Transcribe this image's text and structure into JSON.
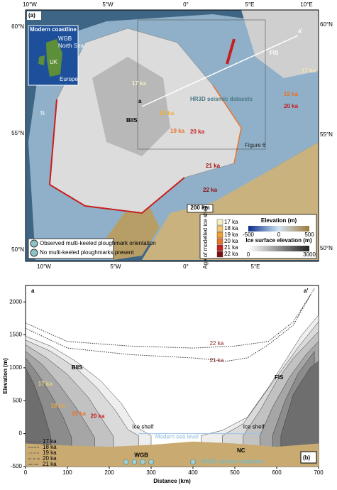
{
  "map": {
    "panel_label": "(a)",
    "lon_top": [
      "10°W",
      "5°W",
      "0°",
      "5°E",
      "10°E"
    ],
    "lon_bottom": [
      "10°W",
      "5°W",
      "0°",
      "5°E"
    ],
    "lat_left": [
      "60°N",
      "55°N",
      "50°N"
    ],
    "lat_right": [
      "60°N",
      "55°N",
      "50°N"
    ],
    "inset": {
      "title": "Modern coastline",
      "labels": [
        "WGB",
        "North Sea",
        "UK",
        "Europe"
      ]
    },
    "ice_sheets": [
      "BIIS",
      "FIS"
    ],
    "transect_ends": [
      "a",
      "a′"
    ],
    "margin_labels": [
      "17 ka",
      "18 ka",
      "19 ka",
      "20 ka",
      "21 ka",
      "22 ka",
      "19 ka",
      "20 ka",
      "17 ka"
    ],
    "seismic_label": "HR3D seismic datasets",
    "box_label": "Figure 6",
    "scale_bar": "200 km",
    "north": "N",
    "symbols": [
      "Observed multi-keeled ploughmark orientation",
      "No multi-keeled ploughmarks present"
    ],
    "legend": {
      "age_title": "Age of modelled ice shelf",
      "ages": [
        "17 ka",
        "18 ka",
        "19 ka",
        "20 ka",
        "21 ka",
        "22 ka"
      ],
      "elevation_title": "Elevation (m)",
      "elevation_ticks": [
        -500,
        0,
        500
      ],
      "ice_title": "Ice surface elevation (m)",
      "ice_ticks": [
        0,
        3000
      ]
    }
  },
  "chart_data": {
    "type": "area",
    "panel_label": "(b)",
    "end_labels": [
      "a",
      "a′"
    ],
    "x_label": "Distance (km)",
    "y_label": "Elevation (m)",
    "xlim": [
      0,
      700
    ],
    "xticks": [
      0,
      100,
      200,
      300,
      400,
      500,
      600,
      700
    ],
    "ylim": [
      -500,
      2250
    ],
    "yticks": [
      -500,
      0,
      500,
      1000,
      1500,
      2000
    ],
    "annotations": [
      "BIIS",
      "FIS",
      "Ice shelf",
      "Ice shelf",
      "Modern sea level",
      "NC",
      "WGB",
      "HR3D seismic datasets"
    ],
    "biis_series": [
      {
        "name": "22 ka",
        "color": "#eeeeee",
        "x": [
          0,
          60,
          120,
          180,
          230,
          265,
          300
        ],
        "values": [
          1480,
          1330,
          1100,
          800,
          450,
          100,
          -30
        ]
      },
      {
        "name": "21 ka",
        "color": "#dadada",
        "x": [
          0,
          60,
          120,
          170,
          215,
          245,
          270
        ],
        "values": [
          1420,
          1250,
          1000,
          700,
          350,
          60,
          -30
        ]
      },
      {
        "name": "20 ka",
        "color": "#c2c2c2",
        "x": [
          0,
          50,
          100,
          150,
          185,
          210
        ],
        "values": [
          1350,
          1150,
          900,
          550,
          200,
          -40
        ]
      },
      {
        "name": "19 ka",
        "color": "#a6a6a6",
        "x": [
          0,
          40,
          80,
          120,
          150,
          165
        ],
        "values": [
          1250,
          1050,
          750,
          400,
          100,
          -60
        ]
      },
      {
        "name": "18 ka",
        "color": "#8c8c8c",
        "x": [
          0,
          30,
          60,
          90,
          110
        ],
        "values": [
          1150,
          900,
          600,
          250,
          -60
        ]
      },
      {
        "name": "17 ka",
        "color": "#6e6e6e",
        "x": [
          0,
          20,
          40,
          60
        ],
        "values": [
          1000,
          750,
          400,
          -40
        ]
      }
    ],
    "fis_series": [
      {
        "name": "22 ka",
        "color": "#eeeeee",
        "x": [
          420,
          470,
          530,
          580,
          620,
          660,
          700
        ],
        "values": [
          -30,
          50,
          250,
          700,
          1100,
          1500,
          1800
        ]
      },
      {
        "name": "21 ka",
        "color": "#dadada",
        "x": [
          470,
          520,
          570,
          610,
          650,
          700
        ],
        "values": [
          -30,
          150,
          600,
          950,
          1300,
          1700
        ]
      },
      {
        "name": "20 ka",
        "color": "#c2c2c2",
        "x": [
          520,
          560,
          600,
          640,
          700
        ],
        "values": [
          -30,
          350,
          800,
          1150,
          1550
        ]
      },
      {
        "name": "19 ka",
        "color": "#a6a6a6",
        "x": [
          560,
          590,
          630,
          670,
          700
        ],
        "values": [
          -30,
          400,
          850,
          1200,
          1400
        ]
      },
      {
        "name": "18 ka",
        "color": "#8c8c8c",
        "x": [
          590,
          620,
          650,
          690
        ],
        "values": [
          -30,
          500,
          900,
          1250
        ]
      },
      {
        "name": "17 ka",
        "color": "#6e6e6e",
        "x": [
          610,
          640,
          680,
          700
        ],
        "values": [
          -30,
          600,
          1000,
          1100
        ]
      }
    ],
    "surface_series": [
      {
        "name": "22 ka",
        "color": "#8b1a1a",
        "x": [
          0,
          100,
          250,
          400,
          500,
          580,
          640,
          690
        ],
        "values": [
          1680,
          1400,
          1330,
          1300,
          1330,
          1400,
          1700,
          2200
        ]
      },
      {
        "name": "21 ka",
        "color": "#8b1a1a",
        "x": [
          0,
          100,
          250,
          400,
          480,
          530,
          580,
          640,
          680
        ],
        "values": [
          1600,
          1300,
          1200,
          1150,
          1100,
          1150,
          1350,
          1650,
          2100
        ]
      }
    ],
    "seabed": {
      "x": [
        0,
        100,
        200,
        300,
        400,
        500,
        600,
        700
      ],
      "values": [
        -150,
        -180,
        -200,
        -170,
        -120,
        -150,
        -200,
        -150
      ]
    },
    "label_colors": [
      "#7a1010",
      "#7a1010",
      "#c81e1e",
      "#e8732a",
      "#e9a64a",
      "#e8d27a"
    ],
    "bed_legend": [
      "17 ka",
      "18 ka",
      "19 ka",
      "20 ka",
      "21 ka"
    ]
  }
}
